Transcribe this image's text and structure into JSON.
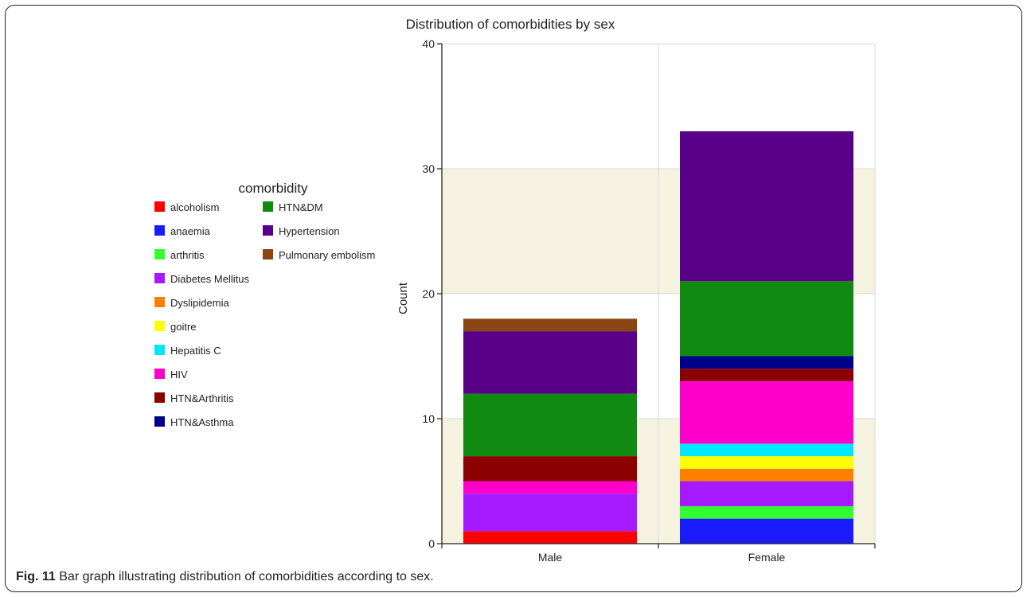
{
  "caption": {
    "figure_label": "Fig. 11",
    "text": "Bar graph illustrating distribution of comorbidities according to sex."
  },
  "chart_data": {
    "type": "bar",
    "stacked": true,
    "title": "Distribution of comorbidities by sex",
    "xlabel": "",
    "ylabel": "Count",
    "ylim": [
      0,
      40
    ],
    "yticks": [
      0,
      10,
      20,
      30,
      40
    ],
    "categories": [
      "Male",
      "Female"
    ],
    "legend": {
      "title": "comorbidity",
      "position": "left"
    },
    "grid": true,
    "series": [
      {
        "name": "alcoholism",
        "color": "#ff0000",
        "values": [
          1,
          0
        ]
      },
      {
        "name": "anaemia",
        "color": "#1a1aff",
        "values": [
          0,
          2
        ]
      },
      {
        "name": "arthritis",
        "color": "#33ff33",
        "values": [
          0,
          1
        ]
      },
      {
        "name": "Diabetes Mellitus",
        "color": "#a61aff",
        "values": [
          3,
          2
        ]
      },
      {
        "name": "Dyslipidemia",
        "color": "#ff8000",
        "values": [
          0,
          1
        ]
      },
      {
        "name": "goitre",
        "color": "#ffff00",
        "values": [
          0,
          1
        ]
      },
      {
        "name": "Hepatitis C",
        "color": "#00e6ff",
        "values": [
          0,
          1
        ]
      },
      {
        "name": "HIV",
        "color": "#ff00cc",
        "values": [
          1,
          5
        ]
      },
      {
        "name": "HTN&Arthritis",
        "color": "#8b0000",
        "values": [
          2,
          1
        ]
      },
      {
        "name": "HTN&Asthma",
        "color": "#00008b",
        "values": [
          0,
          1
        ]
      },
      {
        "name": "HTN&DM",
        "color": "#108a10",
        "values": [
          5,
          6
        ]
      },
      {
        "name": "Hypertension",
        "color": "#580088",
        "values": [
          5,
          12
        ]
      },
      {
        "name": "Pulmonary embolism",
        "color": "#8b4513",
        "values": [
          1,
          0
        ]
      }
    ]
  }
}
